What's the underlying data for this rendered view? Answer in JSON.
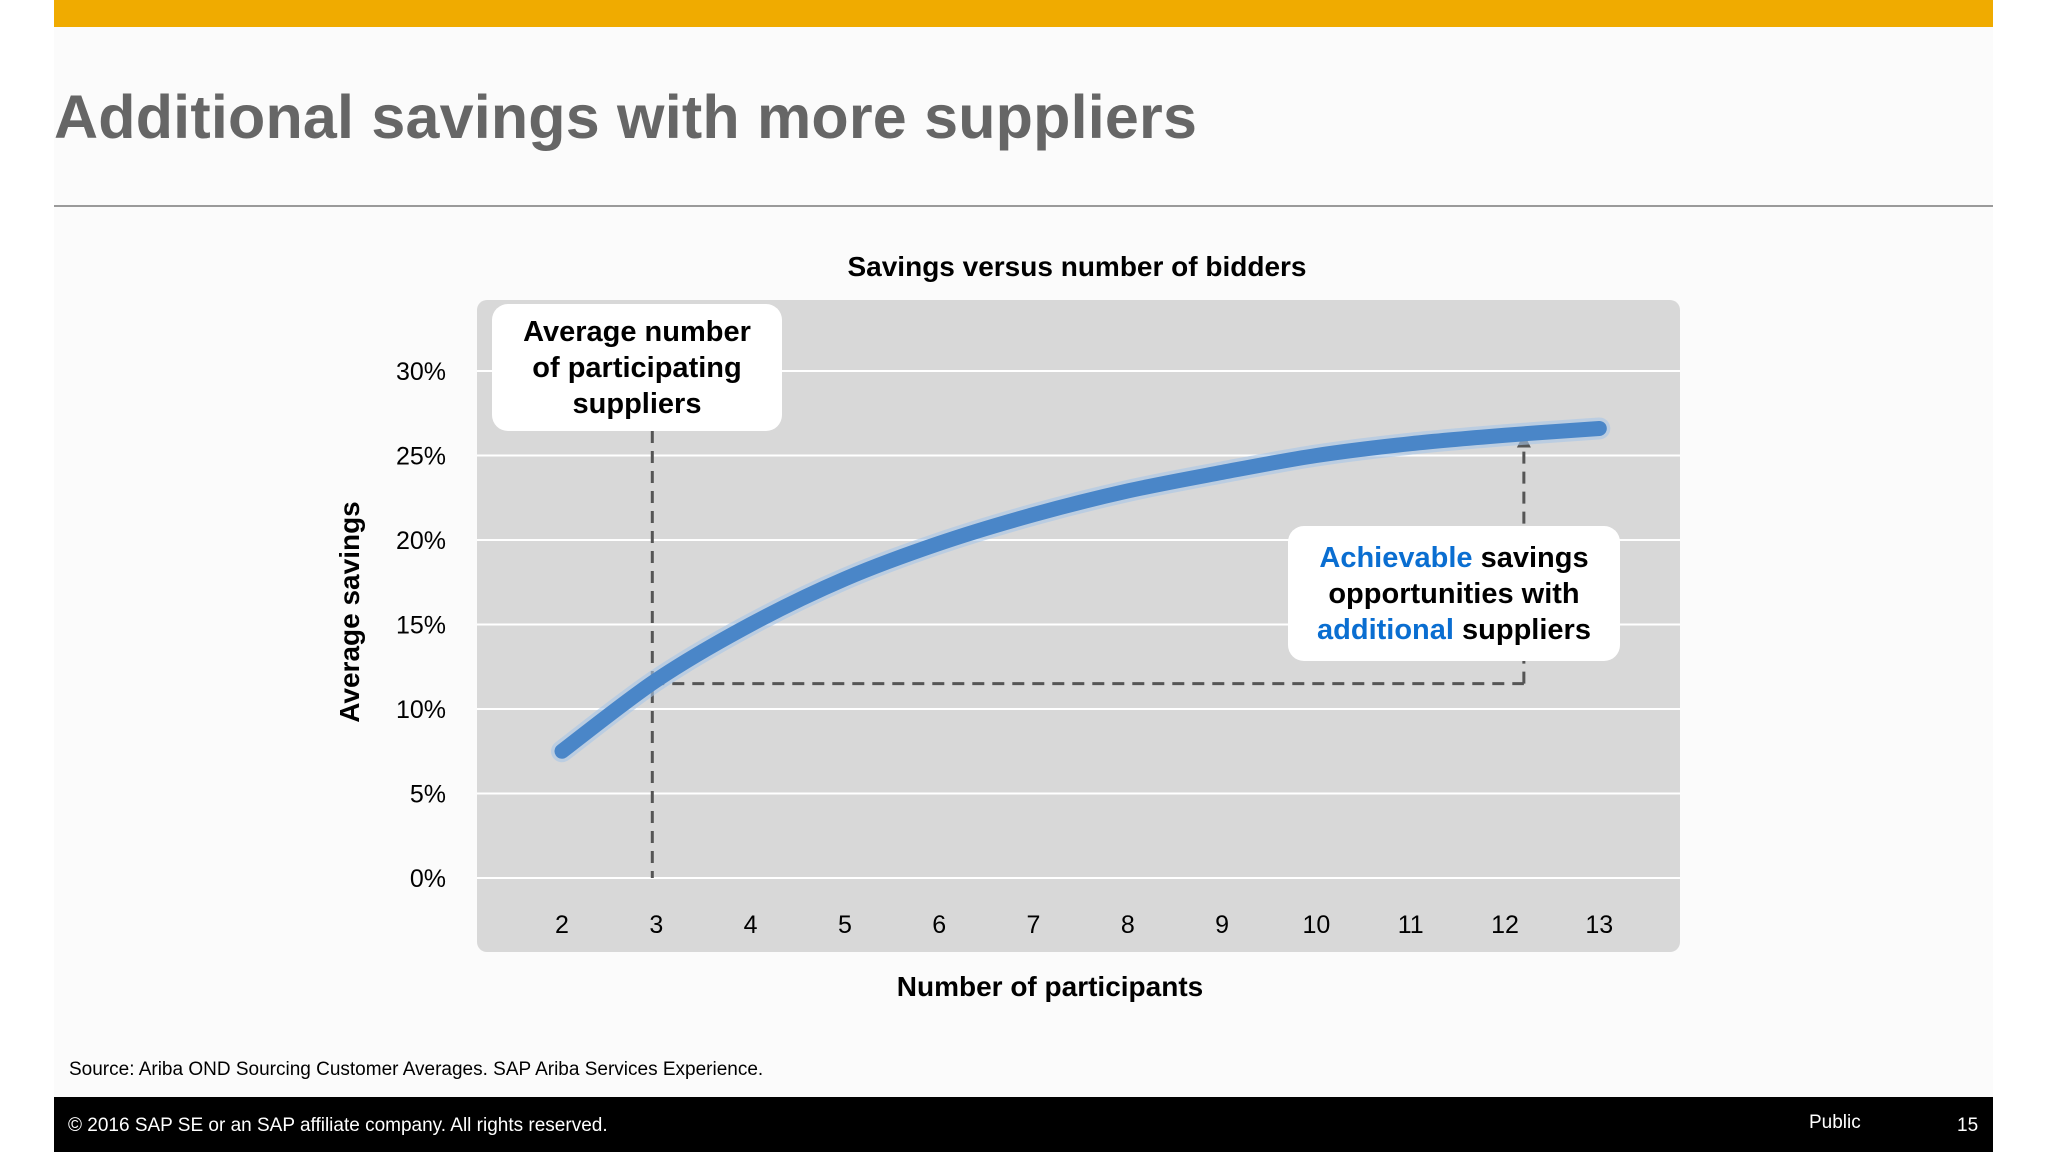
{
  "slide": {
    "title": "Additional savings with more suppliers",
    "source": "Source: Ariba OND Sourcing Customer Averages. SAP Ariba Services Experience.",
    "footer": {
      "copyright": "© 2016 SAP SE or an SAP affiliate company. All rights reserved.",
      "classification": "Public",
      "page_number": "15"
    },
    "colors": {
      "accent_bar": "#f0ab00",
      "title": "#666666",
      "curve": "#4a86c8",
      "highlight": "#0a6ed1"
    }
  },
  "chart_data": {
    "type": "line",
    "title": "Savings versus number of bidders",
    "xlabel": "Number of participants",
    "ylabel": "Average savings",
    "x": [
      2,
      3,
      4,
      5,
      6,
      7,
      8,
      9,
      10,
      11,
      12,
      13
    ],
    "xticks": [
      "2",
      "3",
      "4",
      "5",
      "6",
      "7",
      "8",
      "9",
      "10",
      "11",
      "12",
      "13"
    ],
    "yticks": [
      "0%",
      "5%",
      "10%",
      "15%",
      "20%",
      "25%",
      "30%"
    ],
    "ytick_values": [
      0,
      5,
      10,
      15,
      20,
      25,
      30
    ],
    "ylim": [
      0,
      30
    ],
    "xlim": [
      2,
      13
    ],
    "grid": true,
    "series": [
      {
        "values": [
          7.5,
          11.7,
          15.0,
          17.7,
          19.8,
          21.5,
          22.9,
          24.0,
          25.0,
          25.7,
          26.2,
          26.6
        ]
      }
    ],
    "annotations": {
      "average_participants": {
        "x": 3,
        "y": 11.5,
        "text_lines": [
          "Average number",
          "of participating",
          "suppliers"
        ]
      },
      "achievable": {
        "x": 12.2,
        "y_from": 11.5,
        "y_to": 26.3,
        "line1_highlight": "Achievable",
        "line1_rest": " savings",
        "line2": "opportunities with",
        "line3_highlight": "additional",
        "line3_rest": " suppliers"
      }
    }
  }
}
